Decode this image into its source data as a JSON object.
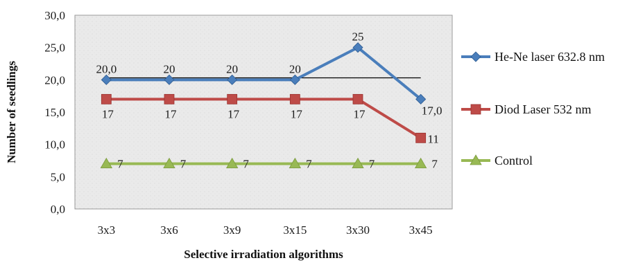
{
  "chart_data": {
    "type": "line",
    "title": "",
    "xlabel": "Selective irradiation  algorithms",
    "ylabel": "Number  of seedlings",
    "categories": [
      "3x3",
      "3x6",
      "3x9",
      "3x15",
      "3x30",
      "3x45"
    ],
    "ylim": [
      0,
      30
    ],
    "yticks": [
      "0,0",
      "5,0",
      "10,0",
      "15,0",
      "20,0",
      "25,0",
      "30,0"
    ],
    "grid": false,
    "legend_position": "right",
    "series": [
      {
        "name": "He-Ne laser 632.8 nm",
        "values": [
          20,
          20,
          20,
          20,
          25,
          17
        ],
        "labels": [
          "20,0",
          "20",
          "20",
          "20",
          "25",
          "17,0"
        ],
        "color": "#4a7ebb",
        "marker": "diamond"
      },
      {
        "name": "Diod Laser 532  nm",
        "values": [
          17,
          17,
          17,
          17,
          17,
          11
        ],
        "labels": [
          "17",
          "17",
          "17",
          "17",
          "17",
          "11"
        ],
        "color": "#be4b48",
        "marker": "square"
      },
      {
        "name": "Control",
        "values": [
          7,
          7,
          7,
          7,
          7,
          7
        ],
        "labels": [
          "7",
          "7",
          "7",
          "7",
          "7",
          "7"
        ],
        "color": "#98b954",
        "marker": "triangle"
      }
    ],
    "reference_line": {
      "value": 20.3,
      "color": "#000000"
    },
    "plot_background": "#e9e9e9"
  }
}
